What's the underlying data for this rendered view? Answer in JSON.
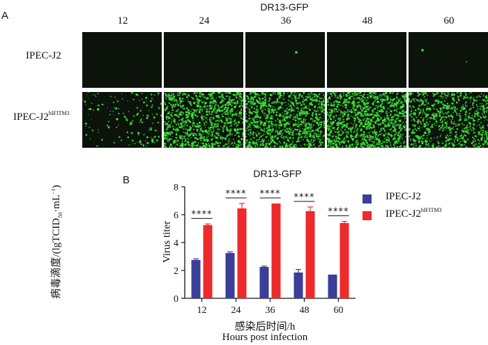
{
  "panel_a": {
    "label": "A",
    "title": "DR13-GFP",
    "timepoints": [
      "12",
      "24",
      "36",
      "48",
      "60"
    ],
    "rows": [
      {
        "label": "IPEC-J2",
        "label_sup": ""
      },
      {
        "label": "IPEC-J2",
        "label_sup": "hIFITM3"
      }
    ],
    "colors": {
      "background": "#0c130b",
      "gfp": "#3ee83a"
    },
    "gfp_density": [
      [
        0,
        0,
        1,
        0,
        1
      ],
      [
        150,
        1100,
        1150,
        1250,
        850
      ]
    ]
  },
  "panel_b": {
    "label": "B",
    "significance": "****"
  },
  "chart_data": {
    "type": "bar",
    "title": "DR13-GFP",
    "ylabel_cn": "病毒滴度/(lgTCID",
    "ylabel_cn_sub": "50",
    "ylabel_cn_end": "·mL",
    "ylabel_cn_sup": "−1",
    "ylabel_cn_close": ")",
    "ylabel_en": "Virus titer",
    "xlabel_cn": "感染后时间/h",
    "xlabel_en": "Hours post infection",
    "categories": [
      "12",
      "24",
      "36",
      "48",
      "60"
    ],
    "ylim": [
      0,
      8
    ],
    "yticks": [
      "0",
      "2",
      "4",
      "6",
      "8"
    ],
    "series": [
      {
        "name": "IPEC-J2",
        "name_sup": "",
        "color": "#3b3f9a",
        "values": [
          2.75,
          3.25,
          2.25,
          1.85,
          1.7
        ],
        "errors": [
          0.08,
          0.08,
          0.06,
          0.22,
          0.0
        ]
      },
      {
        "name": "IPEC-J2",
        "name_sup": "hIFITM3",
        "color": "#ee2a2a",
        "values": [
          5.25,
          6.45,
          6.8,
          6.25,
          5.4
        ],
        "errors": [
          0.08,
          0.35,
          0.0,
          0.3,
          0.12
        ]
      }
    ],
    "legend_position": "right",
    "significance_labels": [
      "****",
      "****",
      "****",
      "****",
      "****"
    ]
  }
}
